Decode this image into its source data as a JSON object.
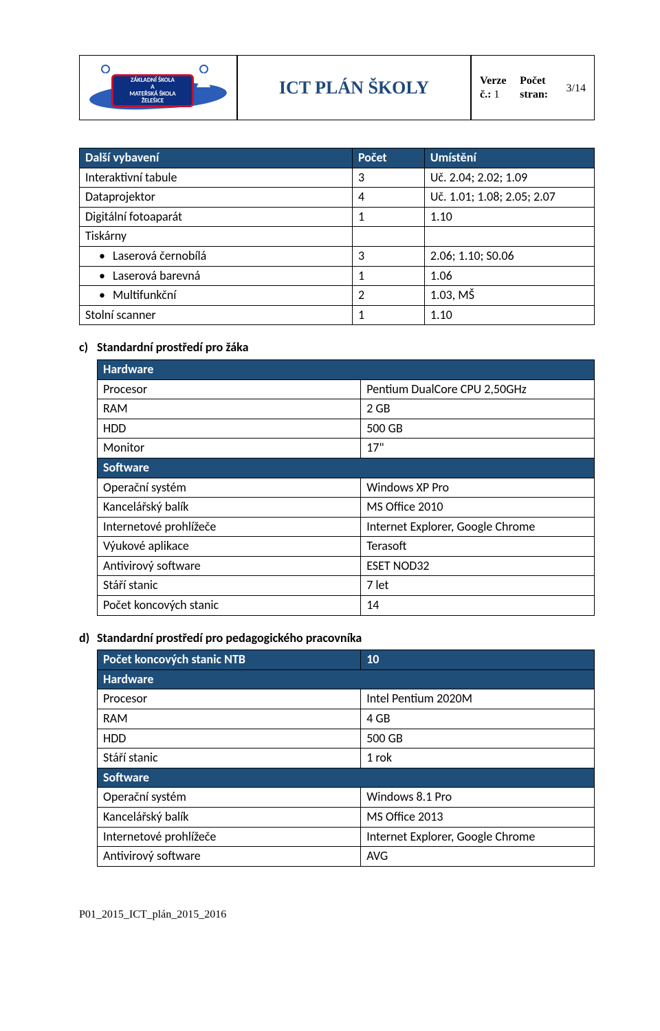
{
  "header": {
    "title": "ICT PLÁN ŠKOLY",
    "meta_verze_label": "Verze č.: ",
    "meta_verze_value": "1",
    "meta_stran_label": "Počet stran:",
    "meta_page": "3/14",
    "logo_lines": {
      "l1": "ZÁKLADNÍ ŠKOLA",
      "l2": "A",
      "l3": "MATEŘSKÁ ŠKOLA",
      "l4": "ŽELEŠICE"
    }
  },
  "colors": {
    "header_blue": "#1f4e79",
    "title_text": "#1f497d",
    "logo_swoosh": "#2b5db9",
    "logo_badge": "#0d2f80",
    "logo_border": "#c8102e"
  },
  "table1": {
    "head": [
      "Další vybavení",
      "Počet",
      "Umístění"
    ],
    "rows": [
      {
        "label": "Interaktivní tabule",
        "count": "3",
        "loc": "Uč. 2.04; 2.02; 1.09",
        "indent": false
      },
      {
        "label": "Dataprojektor",
        "count": "4",
        "loc": "Uč. 1.01; 1.08; 2.05; 2.07",
        "indent": false
      },
      {
        "label": "Digitální fotoaparát",
        "count": "1",
        "loc": "1.10",
        "indent": false
      },
      {
        "label": "Tiskárny",
        "count": "",
        "loc": "",
        "indent": false
      },
      {
        "label": "Laserová černobílá",
        "count": "3",
        "loc": "2.06; 1.10; S0.06",
        "indent": true
      },
      {
        "label": "Laserová barevná",
        "count": "1",
        "loc": "1.06",
        "indent": true
      },
      {
        "label": "Multifunkční",
        "count": "2",
        "loc": "1.03, MŠ",
        "indent": true
      },
      {
        "label": "Stolní scanner",
        "count": "1",
        "loc": "1.10",
        "indent": false
      }
    ]
  },
  "section_c": {
    "letter": "c)",
    "title": "Standardní prostředí pro žáka",
    "hardware_label": "Hardware",
    "software_label": "Software",
    "hw": [
      [
        "Procesor",
        "Pentium DualCore CPU 2,50GHz"
      ],
      [
        "RAM",
        "2 GB"
      ],
      [
        "HDD",
        "500 GB"
      ],
      [
        "Monitor",
        "17\""
      ]
    ],
    "sw": [
      [
        "Operační systém",
        "Windows XP Pro"
      ],
      [
        "Kancelářský balík",
        "MS Office 2010"
      ],
      [
        "Internetové prohlížeče",
        "Internet Explorer, Google Chrome"
      ],
      [
        "Výukové aplikace",
        "Terasoft"
      ],
      [
        "Antivirový software",
        "ESET NOD32"
      ],
      [
        "Stáří stanic",
        "7 let"
      ],
      [
        "Počet koncových stanic",
        "14"
      ]
    ]
  },
  "section_d": {
    "letter": "d)",
    "title": "Standardní prostředí pro pedagogického pracovníka",
    "top_row": [
      "Počet koncových stanic NTB",
      "10"
    ],
    "hardware_label": "Hardware",
    "software_label": "Software",
    "hw": [
      [
        "Procesor",
        "Intel Pentium 2020M"
      ],
      [
        "RAM",
        "4 GB"
      ],
      [
        "HDD",
        "500 GB"
      ],
      [
        "Stáří stanic",
        "1 rok"
      ]
    ],
    "sw": [
      [
        "Operační systém",
        "Windows 8.1 Pro"
      ],
      [
        "Kancelářský balík",
        "MS Office 2013"
      ],
      [
        "Internetové prohlížeče",
        "Internet Explorer, Google Chrome"
      ],
      [
        "Antivirový software",
        "AVG"
      ]
    ]
  },
  "footer": "P01_2015_ICT_plán_2015_2016"
}
